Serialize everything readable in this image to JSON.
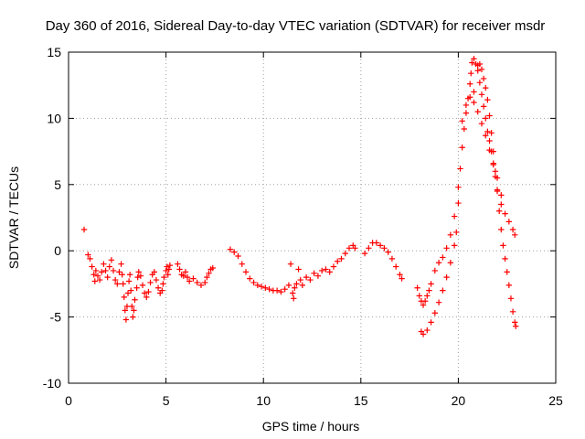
{
  "chart_data": {
    "type": "scatter",
    "title": "Day 360 of 2016, Sidereal Day-to-day VTEC variation (SDTVAR) for receiver msdr",
    "xlabel": "GPS time / hours",
    "ylabel": "SDTVAR / TECUs",
    "xlim": [
      0,
      25
    ],
    "ylim": [
      -10,
      15
    ],
    "xticks": [
      "0",
      "5",
      "10",
      "15",
      "20",
      "25"
    ],
    "yticks": [
      "-10",
      "-5",
      "0",
      "5",
      "10",
      "15"
    ],
    "grid": true,
    "marker": "+",
    "color": "#ff0000",
    "series": [
      {
        "name": "msdr",
        "points": [
          [
            0.8,
            1.6
          ],
          [
            1.0,
            -0.3
          ],
          [
            1.1,
            -0.6
          ],
          [
            1.2,
            -1.2
          ],
          [
            1.3,
            -1.8
          ],
          [
            1.35,
            -2.3
          ],
          [
            1.4,
            -1.5
          ],
          [
            1.5,
            -1.9
          ],
          [
            1.6,
            -2.2
          ],
          [
            1.7,
            -1.6
          ],
          [
            1.8,
            -1.0
          ],
          [
            1.9,
            -1.5
          ],
          [
            2.0,
            -2.0
          ],
          [
            2.1,
            -1.2
          ],
          [
            2.2,
            -0.7
          ],
          [
            2.3,
            -1.5
          ],
          [
            2.4,
            -2.2
          ],
          [
            2.5,
            -2.5
          ],
          [
            2.6,
            -1.6
          ],
          [
            2.7,
            -1.0
          ],
          [
            2.75,
            -1.8
          ],
          [
            2.8,
            -2.5
          ],
          [
            2.85,
            -3.5
          ],
          [
            2.9,
            -4.5
          ],
          [
            2.95,
            -5.2
          ],
          [
            3.0,
            -4.2
          ],
          [
            3.05,
            -3.2
          ],
          [
            3.1,
            -2.3
          ],
          [
            3.15,
            -1.8
          ],
          [
            3.2,
            -3.0
          ],
          [
            3.25,
            -4.2
          ],
          [
            3.3,
            -5.0
          ],
          [
            3.35,
            -4.5
          ],
          [
            3.4,
            -3.7
          ],
          [
            3.5,
            -2.8
          ],
          [
            3.55,
            -2.0
          ],
          [
            3.6,
            -1.6
          ],
          [
            3.7,
            -1.9
          ],
          [
            3.8,
            -2.6
          ],
          [
            3.9,
            -3.2
          ],
          [
            4.0,
            -3.5
          ],
          [
            4.1,
            -3.1
          ],
          [
            4.2,
            -2.4
          ],
          [
            4.3,
            -1.8
          ],
          [
            4.4,
            -1.6
          ],
          [
            4.5,
            -2.2
          ],
          [
            4.6,
            -2.8
          ],
          [
            4.7,
            -3.2
          ],
          [
            4.8,
            -3.0
          ],
          [
            4.85,
            -2.5
          ],
          [
            4.9,
            -2.0
          ],
          [
            5.0,
            -1.5
          ],
          [
            5.05,
            -1.2
          ],
          [
            5.1,
            -1.8
          ],
          [
            5.15,
            -1.4
          ],
          [
            5.2,
            -1.1
          ],
          [
            5.6,
            -1.0
          ],
          [
            5.7,
            -1.4
          ],
          [
            5.8,
            -1.8
          ],
          [
            5.9,
            -1.9
          ],
          [
            6.0,
            -1.6
          ],
          [
            6.1,
            -2.0
          ],
          [
            6.2,
            -2.3
          ],
          [
            6.4,
            -2.1
          ],
          [
            6.6,
            -2.4
          ],
          [
            6.8,
            -2.6
          ],
          [
            7.0,
            -2.4
          ],
          [
            7.1,
            -2.0
          ],
          [
            7.2,
            -1.7
          ],
          [
            7.3,
            -1.4
          ],
          [
            7.4,
            -1.3
          ],
          [
            8.3,
            0.1
          ],
          [
            8.5,
            -0.1
          ],
          [
            8.7,
            -0.4
          ],
          [
            8.9,
            -1.0
          ],
          [
            9.1,
            -1.6
          ],
          [
            9.3,
            -2.1
          ],
          [
            9.5,
            -2.4
          ],
          [
            9.7,
            -2.6
          ],
          [
            9.9,
            -2.7
          ],
          [
            10.1,
            -2.8
          ],
          [
            10.3,
            -2.9
          ],
          [
            10.5,
            -3.0
          ],
          [
            10.7,
            -3.0
          ],
          [
            10.9,
            -3.1
          ],
          [
            11.1,
            -2.9
          ],
          [
            11.3,
            -2.6
          ],
          [
            11.4,
            -1.0
          ],
          [
            11.5,
            -3.2
          ],
          [
            11.55,
            -3.6
          ],
          [
            11.6,
            -2.8
          ],
          [
            11.7,
            -2.5
          ],
          [
            11.8,
            -1.4
          ],
          [
            11.9,
            -2.2
          ],
          [
            12.0,
            -2.6
          ],
          [
            12.2,
            -2.0
          ],
          [
            12.4,
            -2.2
          ],
          [
            12.6,
            -1.7
          ],
          [
            12.8,
            -1.9
          ],
          [
            13.0,
            -1.5
          ],
          [
            13.2,
            -1.4
          ],
          [
            13.4,
            -1.6
          ],
          [
            13.6,
            -1.2
          ],
          [
            13.8,
            -0.8
          ],
          [
            14.0,
            -0.6
          ],
          [
            14.2,
            -0.2
          ],
          [
            14.4,
            0.2
          ],
          [
            14.6,
            0.4
          ],
          [
            14.7,
            0.2
          ],
          [
            15.2,
            -0.2
          ],
          [
            15.4,
            0.2
          ],
          [
            15.6,
            0.6
          ],
          [
            15.8,
            0.6
          ],
          [
            16.0,
            0.4
          ],
          [
            16.2,
            0.2
          ],
          [
            16.4,
            -0.1
          ],
          [
            16.6,
            -0.6
          ],
          [
            16.8,
            -1.2
          ],
          [
            17.0,
            -1.8
          ],
          [
            17.1,
            -2.1
          ],
          [
            17.9,
            -2.8
          ],
          [
            18.0,
            -3.4
          ],
          [
            18.1,
            -3.8
          ],
          [
            18.2,
            -4.1
          ],
          [
            18.3,
            -3.8
          ],
          [
            18.4,
            -3.4
          ],
          [
            18.5,
            -3.0
          ],
          [
            18.6,
            -2.5
          ],
          [
            18.1,
            -6.1
          ],
          [
            18.2,
            -6.3
          ],
          [
            18.4,
            -6.0
          ],
          [
            18.6,
            -5.4
          ],
          [
            18.8,
            -4.7
          ],
          [
            19.0,
            -3.9
          ],
          [
            19.2,
            -3.0
          ],
          [
            19.4,
            -2.0
          ],
          [
            19.6,
            -0.9
          ],
          [
            19.8,
            0.4
          ],
          [
            19.9,
            1.4
          ],
          [
            18.8,
            -1.5
          ],
          [
            19.0,
            -0.9
          ],
          [
            19.2,
            -0.5
          ],
          [
            19.4,
            0.2
          ],
          [
            19.6,
            1.2
          ],
          [
            19.8,
            2.6
          ],
          [
            20.0,
            4.8
          ],
          [
            20.0,
            3.6
          ],
          [
            20.1,
            6.2
          ],
          [
            20.2,
            7.8
          ],
          [
            20.3,
            9.2
          ],
          [
            20.4,
            10.4
          ],
          [
            20.5,
            11.5
          ],
          [
            20.6,
            12.6
          ],
          [
            20.65,
            13.4
          ],
          [
            20.7,
            14.2
          ],
          [
            20.8,
            14.5
          ],
          [
            20.9,
            14.1
          ],
          [
            21.0,
            13.6
          ],
          [
            21.1,
            12.7
          ],
          [
            21.2,
            11.8
          ],
          [
            21.3,
            10.9
          ],
          [
            21.4,
            10.0
          ],
          [
            21.5,
            9.0
          ],
          [
            21.6,
            8.3
          ],
          [
            21.7,
            7.5
          ],
          [
            21.8,
            6.6
          ],
          [
            21.9,
            5.6
          ],
          [
            22.0,
            4.6
          ],
          [
            22.2,
            3.5
          ],
          [
            22.4,
            2.8
          ],
          [
            22.6,
            2.2
          ],
          [
            22.8,
            1.6
          ],
          [
            22.9,
            1.2
          ],
          [
            20.2,
            9.8
          ],
          [
            20.4,
            11.0
          ],
          [
            20.6,
            11.6
          ],
          [
            20.8,
            12.0
          ],
          [
            21.0,
            14.0
          ],
          [
            21.1,
            14.1
          ],
          [
            21.2,
            13.7
          ],
          [
            21.3,
            13.0
          ],
          [
            21.4,
            12.3
          ],
          [
            21.5,
            11.4
          ],
          [
            21.6,
            10.2
          ],
          [
            21.7,
            8.9
          ],
          [
            21.8,
            7.5
          ],
          [
            21.9,
            6.0
          ],
          [
            22.0,
            4.5
          ],
          [
            22.1,
            3.0
          ],
          [
            22.2,
            1.6
          ],
          [
            22.3,
            0.4
          ],
          [
            22.4,
            -0.6
          ],
          [
            22.5,
            -1.6
          ],
          [
            22.6,
            -2.6
          ],
          [
            22.7,
            -3.6
          ],
          [
            22.8,
            -4.6
          ],
          [
            22.9,
            -5.4
          ],
          [
            22.95,
            -5.7
          ],
          [
            20.8,
            11.2
          ],
          [
            21.0,
            10.5
          ],
          [
            21.2,
            9.6
          ],
          [
            21.4,
            8.7
          ],
          [
            21.6,
            7.6
          ],
          [
            21.8,
            6.5
          ],
          [
            22.0,
            5.5
          ],
          [
            22.2,
            4.2
          ]
        ]
      }
    ]
  }
}
